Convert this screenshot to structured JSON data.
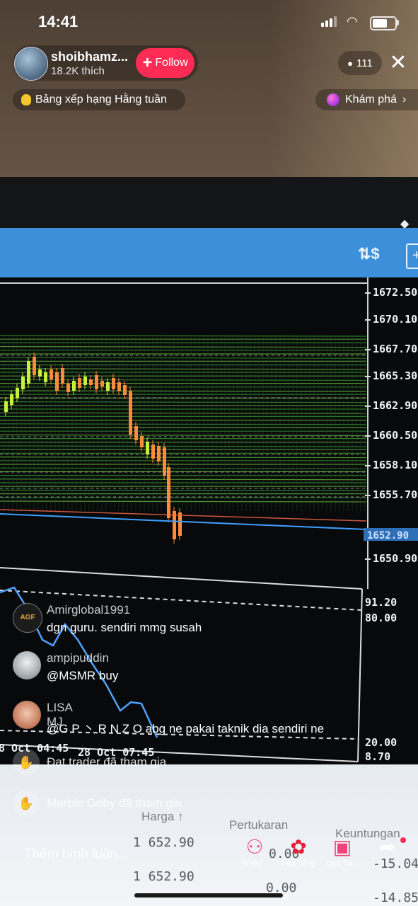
{
  "status": {
    "time": "14:41",
    "battery_level": 0.7
  },
  "host": {
    "name": "shoibhamz...",
    "likes": "18.2K thích",
    "follow_label": "Follow"
  },
  "viewers": {
    "count": "111"
  },
  "badges": {
    "ranking": "Bảng xếp hạng Hằng tuần",
    "explore": "Khám phá"
  },
  "chart": {
    "price_ticks": [
      "1672.50",
      "1670.10",
      "1667.70",
      "1665.30",
      "1662.90",
      "1660.50",
      "1658.10",
      "1655.70",
      "1650.90"
    ],
    "current_price": "1652.90",
    "indicator_ticks": [
      "91.20",
      "80.00",
      "20.00",
      "8.70"
    ],
    "time_labels": [
      "8 Oct 04:45",
      "28 Oct 07:45"
    ],
    "colors": {
      "bull": "#c8f03a",
      "bear": "#ff8a3a",
      "grid_green": "#2f8f2a",
      "current_line": "#3ea0ff"
    }
  },
  "trade_table": {
    "col_price": "Harga ↑",
    "col_change": "Pertukaran",
    "col_profit": "Keuntungan",
    "rows": [
      {
        "price": "1 652.90",
        "change": "0.00",
        "profit": "-15.04"
      },
      {
        "price": "1 652.90",
        "change": "0.00",
        "profit": "-14.85"
      }
    ]
  },
  "comments": [
    {
      "user": "Amirglobal1991",
      "text": "dgn guru. sendiri mmg susah",
      "avatar_label": "AGF"
    },
    {
      "user": "ampipuddin",
      "text": "@MSMR buy"
    },
    {
      "user": "LISA MJ",
      "text": "@G P 丶 R N Z O abg ne pakai taknik dia sendiri ne"
    }
  ],
  "joins": [
    {
      "text": "Đạt trader đã tham gia"
    },
    {
      "text": "Marble Goby đã tham gia"
    }
  ],
  "bottom": {
    "comment_placeholder": "Thêm bình luận...",
    "actions": [
      {
        "icon": "multi-guest-icon",
        "label": "Nhiều..."
      },
      {
        "icon": "rose-icon",
        "label": "Hoa hồng"
      },
      {
        "icon": "gift-icon",
        "label": "Quà Tặ..."
      },
      {
        "icon": "share-icon",
        "label": ""
      }
    ]
  }
}
